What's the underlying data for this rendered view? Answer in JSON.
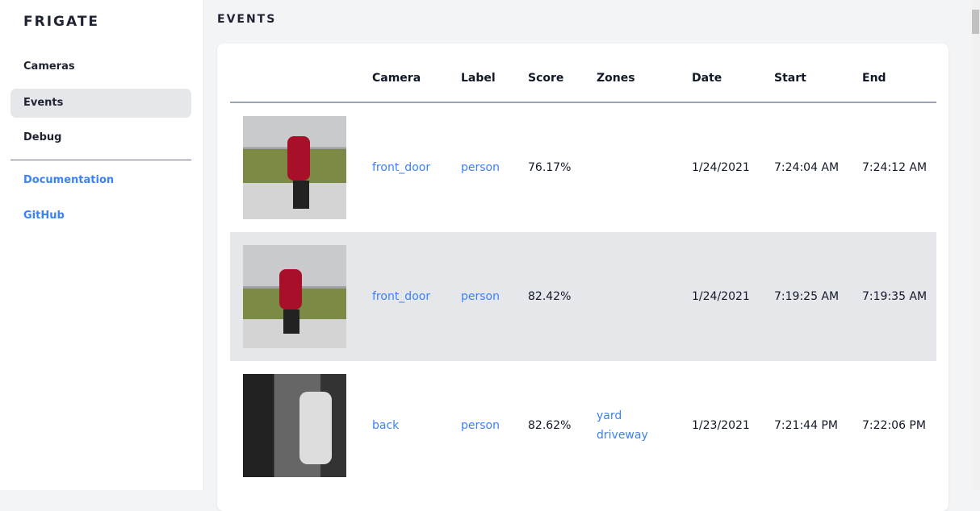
{
  "sidebar": {
    "logo": "FRIGATE",
    "items": [
      {
        "label": "Cameras"
      },
      {
        "label": "Events",
        "active": true
      },
      {
        "label": "Debug"
      }
    ],
    "links": [
      {
        "label": "Documentation"
      },
      {
        "label": "GitHub"
      }
    ]
  },
  "page": {
    "title": "EVENTS"
  },
  "table": {
    "headers": [
      "Camera",
      "Label",
      "Score",
      "Zones",
      "Date",
      "Start",
      "End"
    ],
    "rows": [
      {
        "camera": "front_door",
        "label": "person",
        "score": "76.17%",
        "zones": [
          "",
          ""
        ],
        "date": "1/24/2021",
        "start": "7:24:04 AM",
        "end": "7:24:12 AM"
      },
      {
        "camera": "front_door",
        "label": "person",
        "score": "82.42%",
        "zones": [
          "",
          ""
        ],
        "date": "1/24/2021",
        "start": "7:19:25 AM",
        "end": "7:19:35 AM"
      },
      {
        "camera": "back",
        "label": "person",
        "score": "82.62%",
        "zones": [
          "yard",
          "driveway"
        ],
        "date": "1/23/2021",
        "start": "7:21:44 PM",
        "end": "7:22:06 PM"
      }
    ]
  },
  "colors": {
    "accent": "#3b82f6",
    "active_bg": "#e5e7eb",
    "page_bg": "#f3f4f6"
  }
}
